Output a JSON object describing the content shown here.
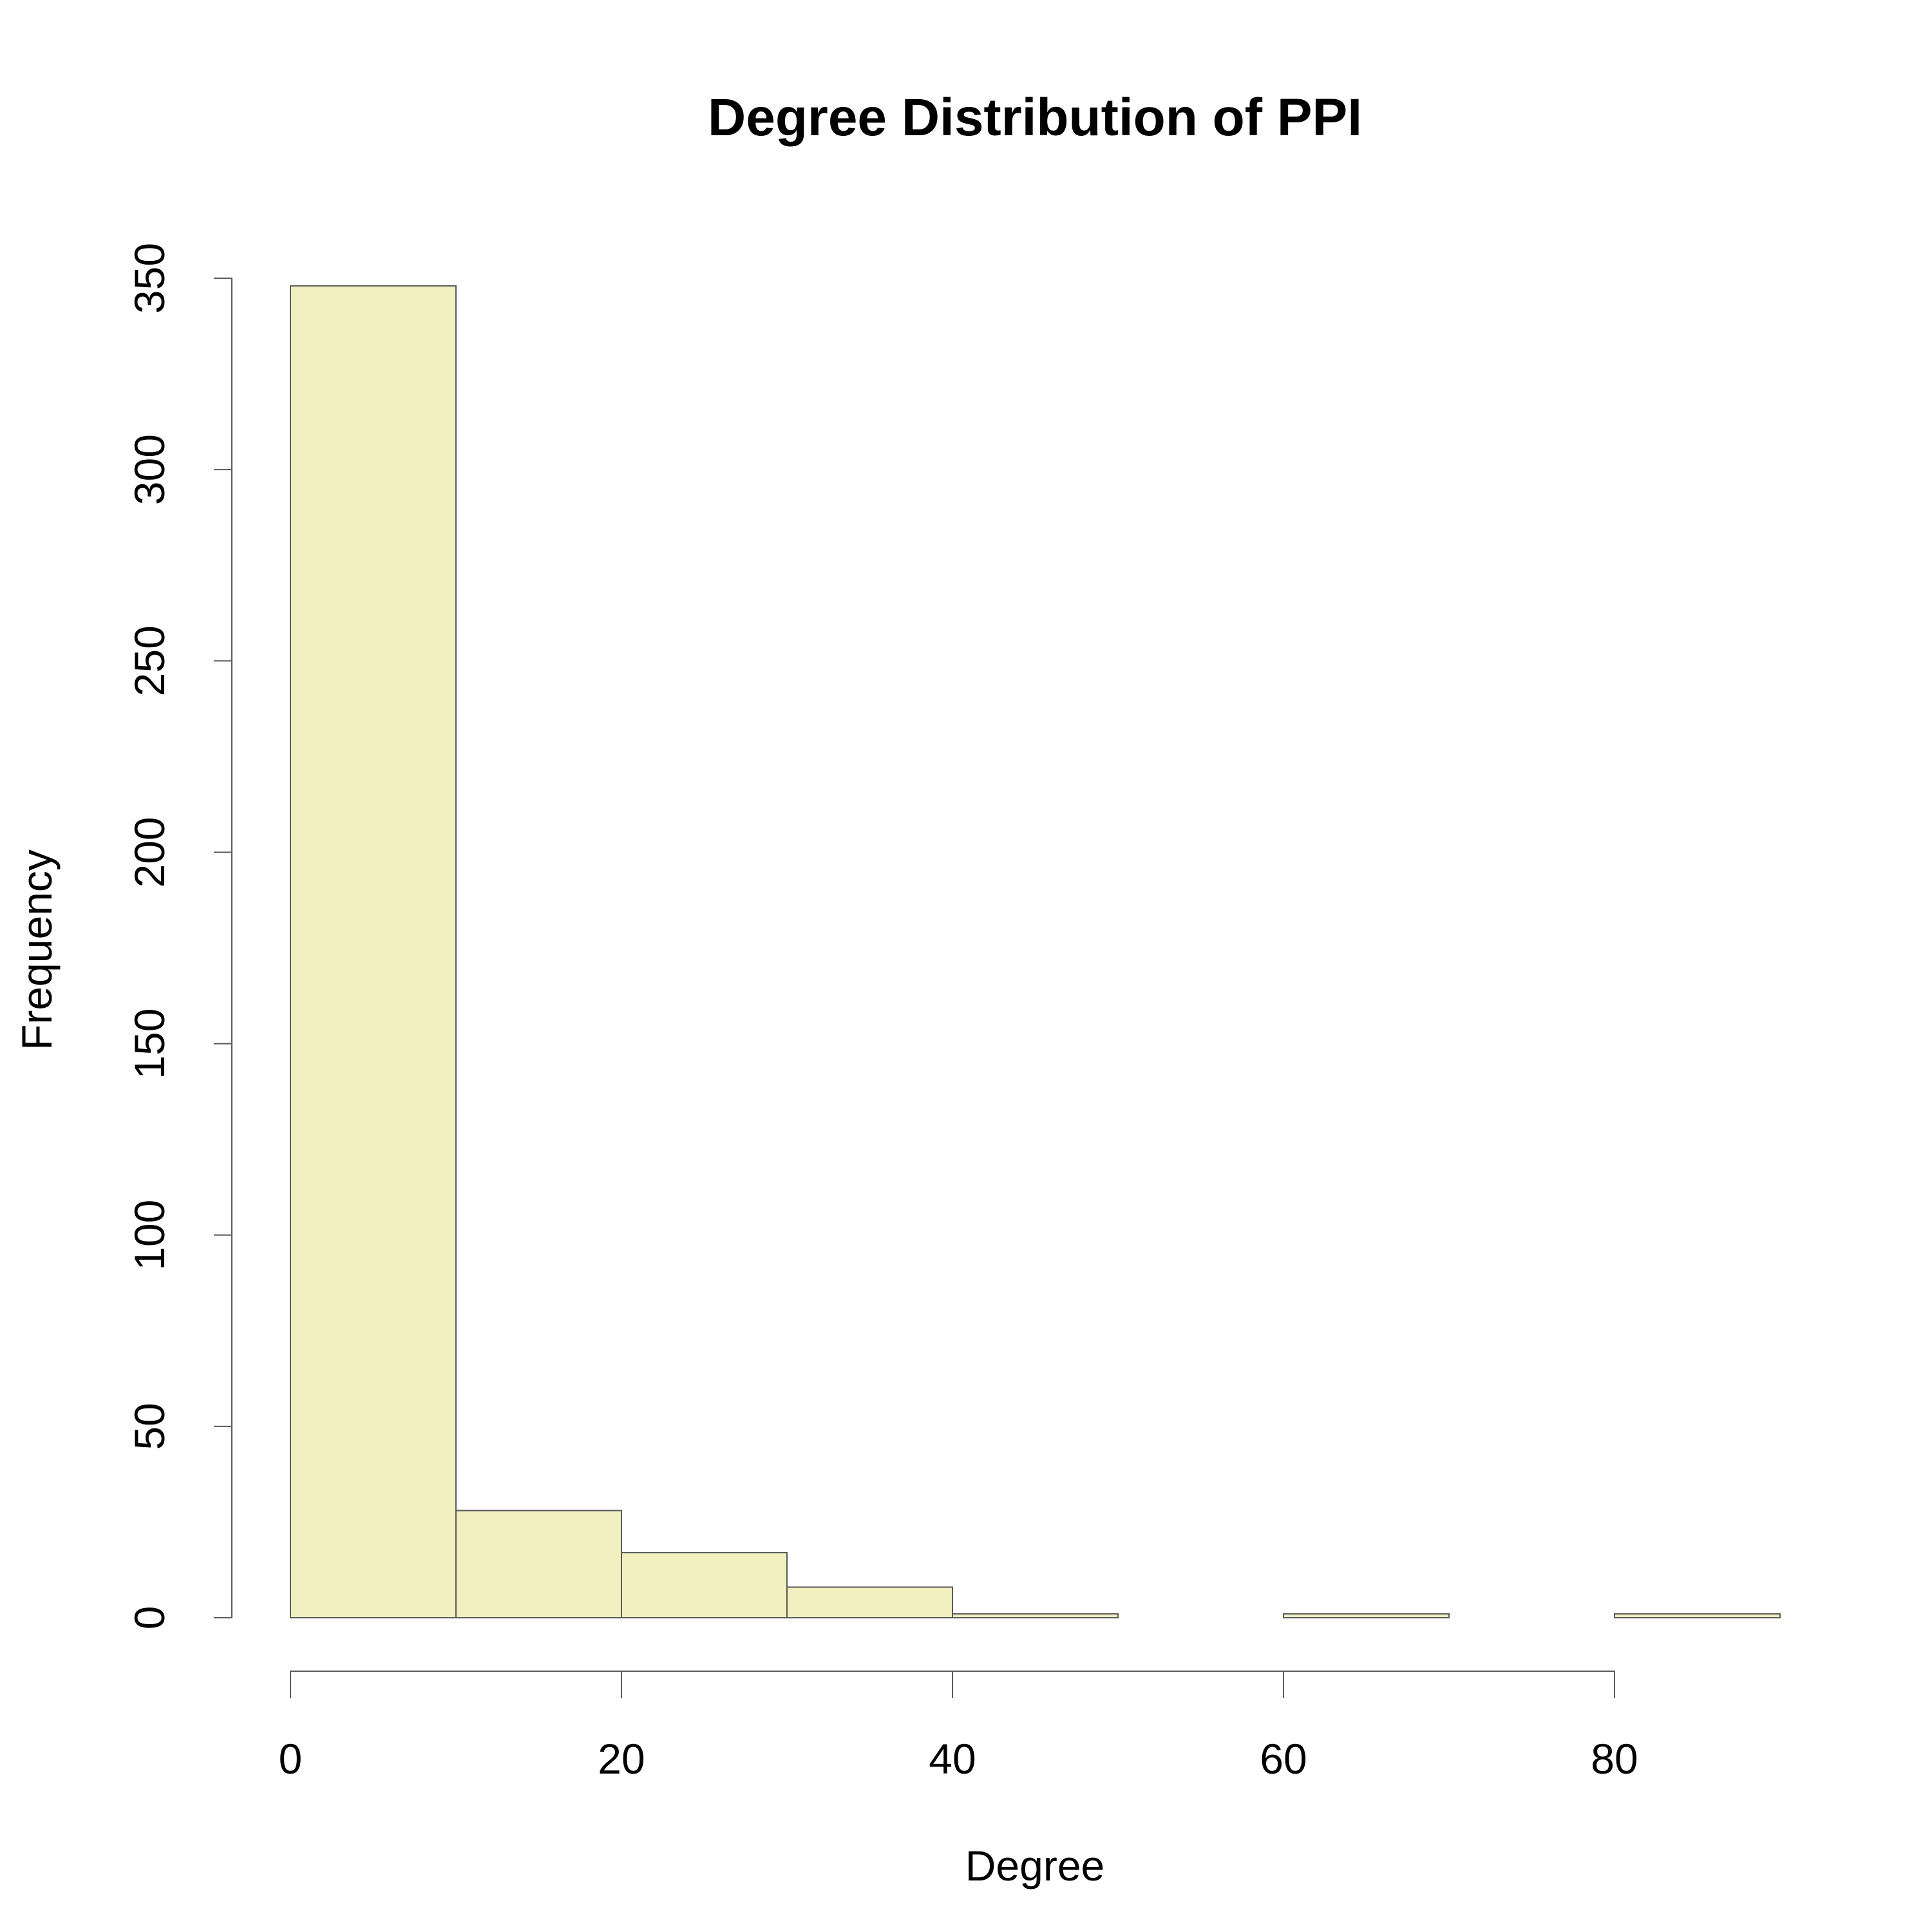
{
  "chart_data": {
    "type": "bar",
    "title": "Degree Distribution of PPI",
    "xlabel": "Degree",
    "ylabel": "Frequency",
    "bin_edges": [
      0,
      10,
      20,
      30,
      40,
      50,
      60,
      70,
      80,
      90
    ],
    "values": [
      348,
      28,
      17,
      8,
      1,
      0,
      1,
      0,
      1
    ],
    "xlim": [
      0,
      90
    ],
    "ylim": [
      0,
      350
    ],
    "x_ticks": [
      0,
      20,
      40,
      60,
      80
    ],
    "y_ticks": [
      0,
      50,
      100,
      150,
      200,
      250,
      300,
      350
    ],
    "bar_color": "#f2f0c0",
    "grid": false
  }
}
